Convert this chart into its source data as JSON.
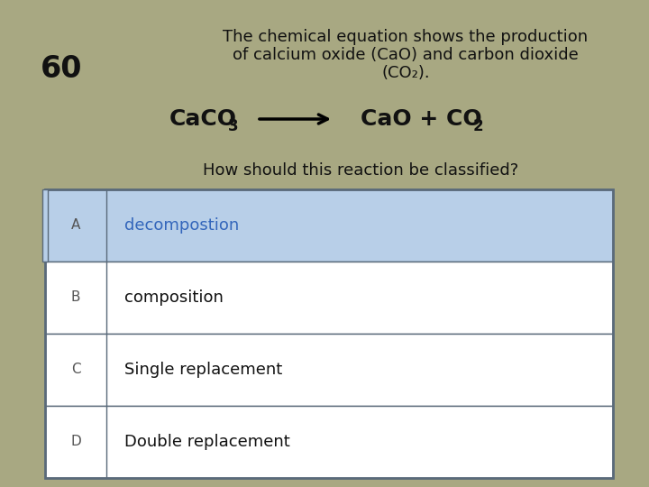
{
  "background_color": "#a8a882",
  "number": "60",
  "title_line1": "The chemical equation shows the production",
  "title_line2": "of calcium oxide (CaO) and carbon dioxide",
  "title_line3": "(CO₂).",
  "question": "How should this reaction be classified?",
  "options": [
    {
      "letter": "A",
      "text": "decompostion",
      "highlight": true
    },
    {
      "letter": "B",
      "text": "composition",
      "highlight": false
    },
    {
      "letter": "C",
      "text": "Single replacement",
      "highlight": false
    },
    {
      "letter": "D",
      "text": "Double replacement",
      "highlight": false
    }
  ],
  "highlight_color": "#b8cfe8",
  "table_bg_color": "#ffffff",
  "border_color": "#5a6a7a",
  "text_color_highlight": "#3366bb",
  "text_color_normal": "#111111",
  "text_color_letter": "#555555",
  "number_fontsize": 24,
  "title_fontsize": 13,
  "equation_fontsize": 18,
  "question_fontsize": 13,
  "option_fontsize": 13,
  "letter_fontsize": 11
}
